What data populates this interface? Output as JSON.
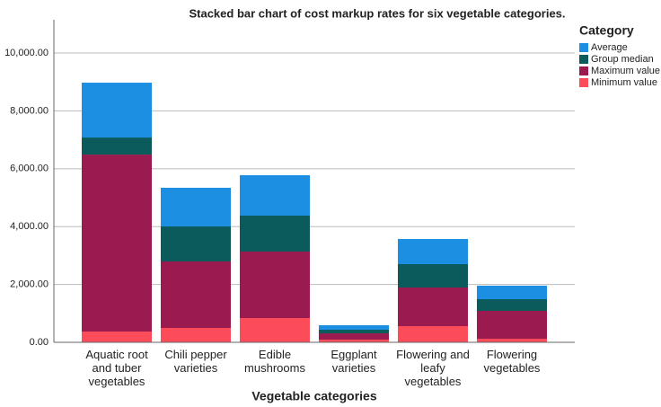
{
  "chart_data": {
    "type": "stacked_bar",
    "title": "Stacked bar chart of cost markup rates for six vegetable categories.",
    "x_label": "Vegetable categories",
    "legend_title": "Category",
    "legend_position": "upper right",
    "categories": [
      "Aquatic root and tuber vegetables",
      "Chili pepper varieties",
      "Edible mushrooms",
      "Eggplant varieties",
      "Flowering and leafy vegetables",
      "Flowering vegetables"
    ],
    "series": [
      {
        "name": "Average",
        "color": "#1c8fe3",
        "values": [
          1895,
          1336,
          1397,
          155,
          869,
          466
        ]
      },
      {
        "name": "Group median",
        "color": "#0b5b5c",
        "values": [
          590,
          1211,
          1242,
          125,
          808,
          404
        ]
      },
      {
        "name": "Maximum value",
        "color": "#9b1a4f",
        "values": [
          6117,
          2298,
          2298,
          217,
          1335,
          963
        ]
      },
      {
        "name": "Minimum value",
        "color": "#fc4c5a",
        "values": [
          373,
          497,
          839,
          93,
          559,
          124
        ]
      }
    ],
    "ylim": [
      0,
      11150
    ],
    "yticks": [
      {
        "value": 0,
        "label": "0.00"
      },
      {
        "value": 2000,
        "label": "2,000.00"
      },
      {
        "value": 4000,
        "label": "4,000.00"
      },
      {
        "value": 6000,
        "label": "6,000.00"
      },
      {
        "value": 8000,
        "label": "8,000.00"
      },
      {
        "value": 10000,
        "label": "10,000.00"
      }
    ],
    "grid": true
  }
}
